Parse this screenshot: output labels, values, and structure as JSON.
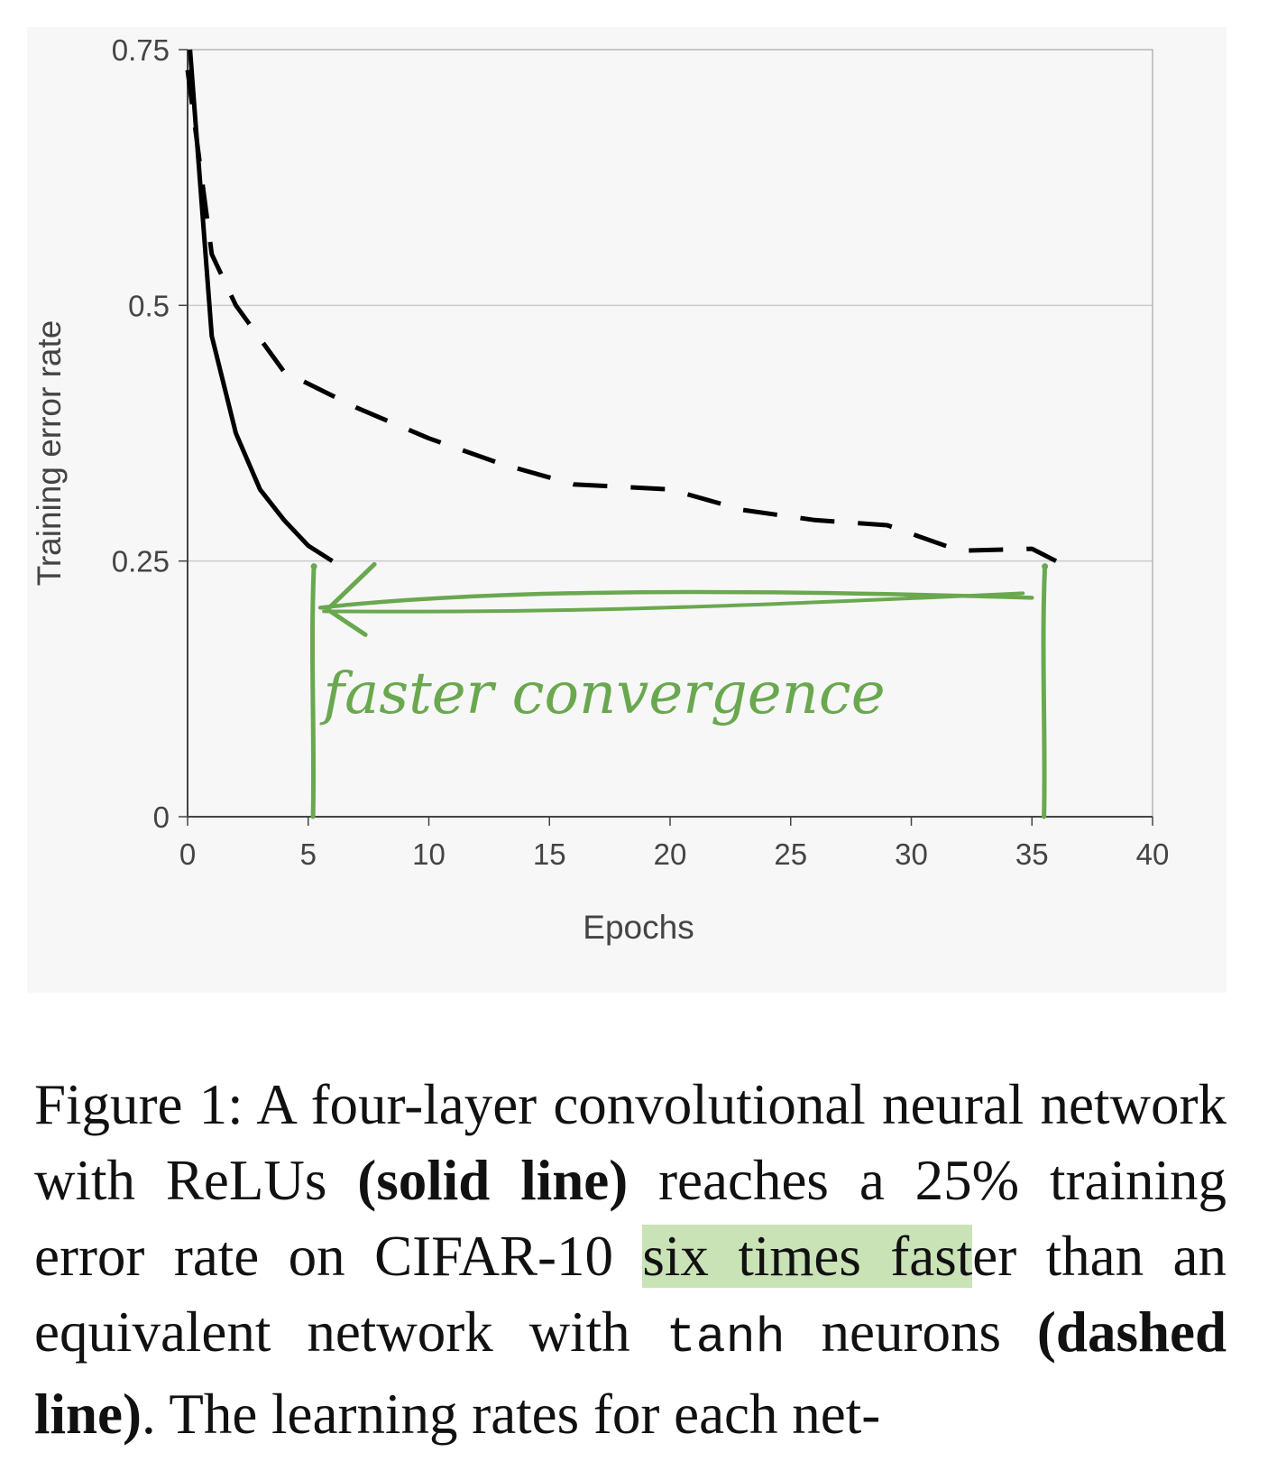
{
  "chart_data": {
    "type": "line",
    "xlabel": "Epochs",
    "ylabel": "Training error rate",
    "xlim": [
      0,
      40
    ],
    "ylim": [
      0,
      0.75
    ],
    "x_ticks": [
      "0",
      "5",
      "10",
      "15",
      "20",
      "25",
      "30",
      "35",
      "40"
    ],
    "y_ticks": [
      "0",
      "0.25",
      "0.5",
      "0.75"
    ],
    "grid": "horizontal",
    "series": [
      {
        "style": "solid",
        "color": "#000000",
        "x": [
          0.1,
          1,
          2,
          3,
          4,
          5,
          6
        ],
        "y": [
          0.75,
          0.47,
          0.375,
          0.32,
          0.29,
          0.265,
          0.25
        ]
      },
      {
        "style": "dashed",
        "color": "#000000",
        "x": [
          0,
          1,
          2,
          4,
          7,
          10,
          13,
          16,
          20,
          23,
          26,
          29,
          32,
          35,
          36
        ],
        "y": [
          0.73,
          0.55,
          0.5,
          0.435,
          0.4,
          0.37,
          0.345,
          0.325,
          0.32,
          0.3,
          0.29,
          0.285,
          0.26,
          0.262,
          0.25
        ]
      }
    ],
    "annotation": {
      "text": "faster convergence",
      "color": "#6aa84f",
      "marker_x": [
        5.2,
        35.5
      ],
      "arrow_from_x": 35,
      "arrow_to_x": 5.5,
      "arrow_y": 0.215
    }
  },
  "caption": {
    "label": "Figure 1:",
    "part1": " A four-layer convolutional neural network with ReLUs ",
    "bold1": "(solid line)",
    "part2": " reaches a 25% training error rate on CIFAR-10 ",
    "highlight": "six times fast",
    "part3": "er than an equivalent network with ",
    "mono": "tanh",
    "part4": " neurons ",
    "bold2": "(dashed line)",
    "part5": ".  The learning rates for each net-"
  },
  "colors": {
    "annotation": "#6aa84f",
    "highlight": "#c9e2b6",
    "gridline": "#cccccc"
  }
}
